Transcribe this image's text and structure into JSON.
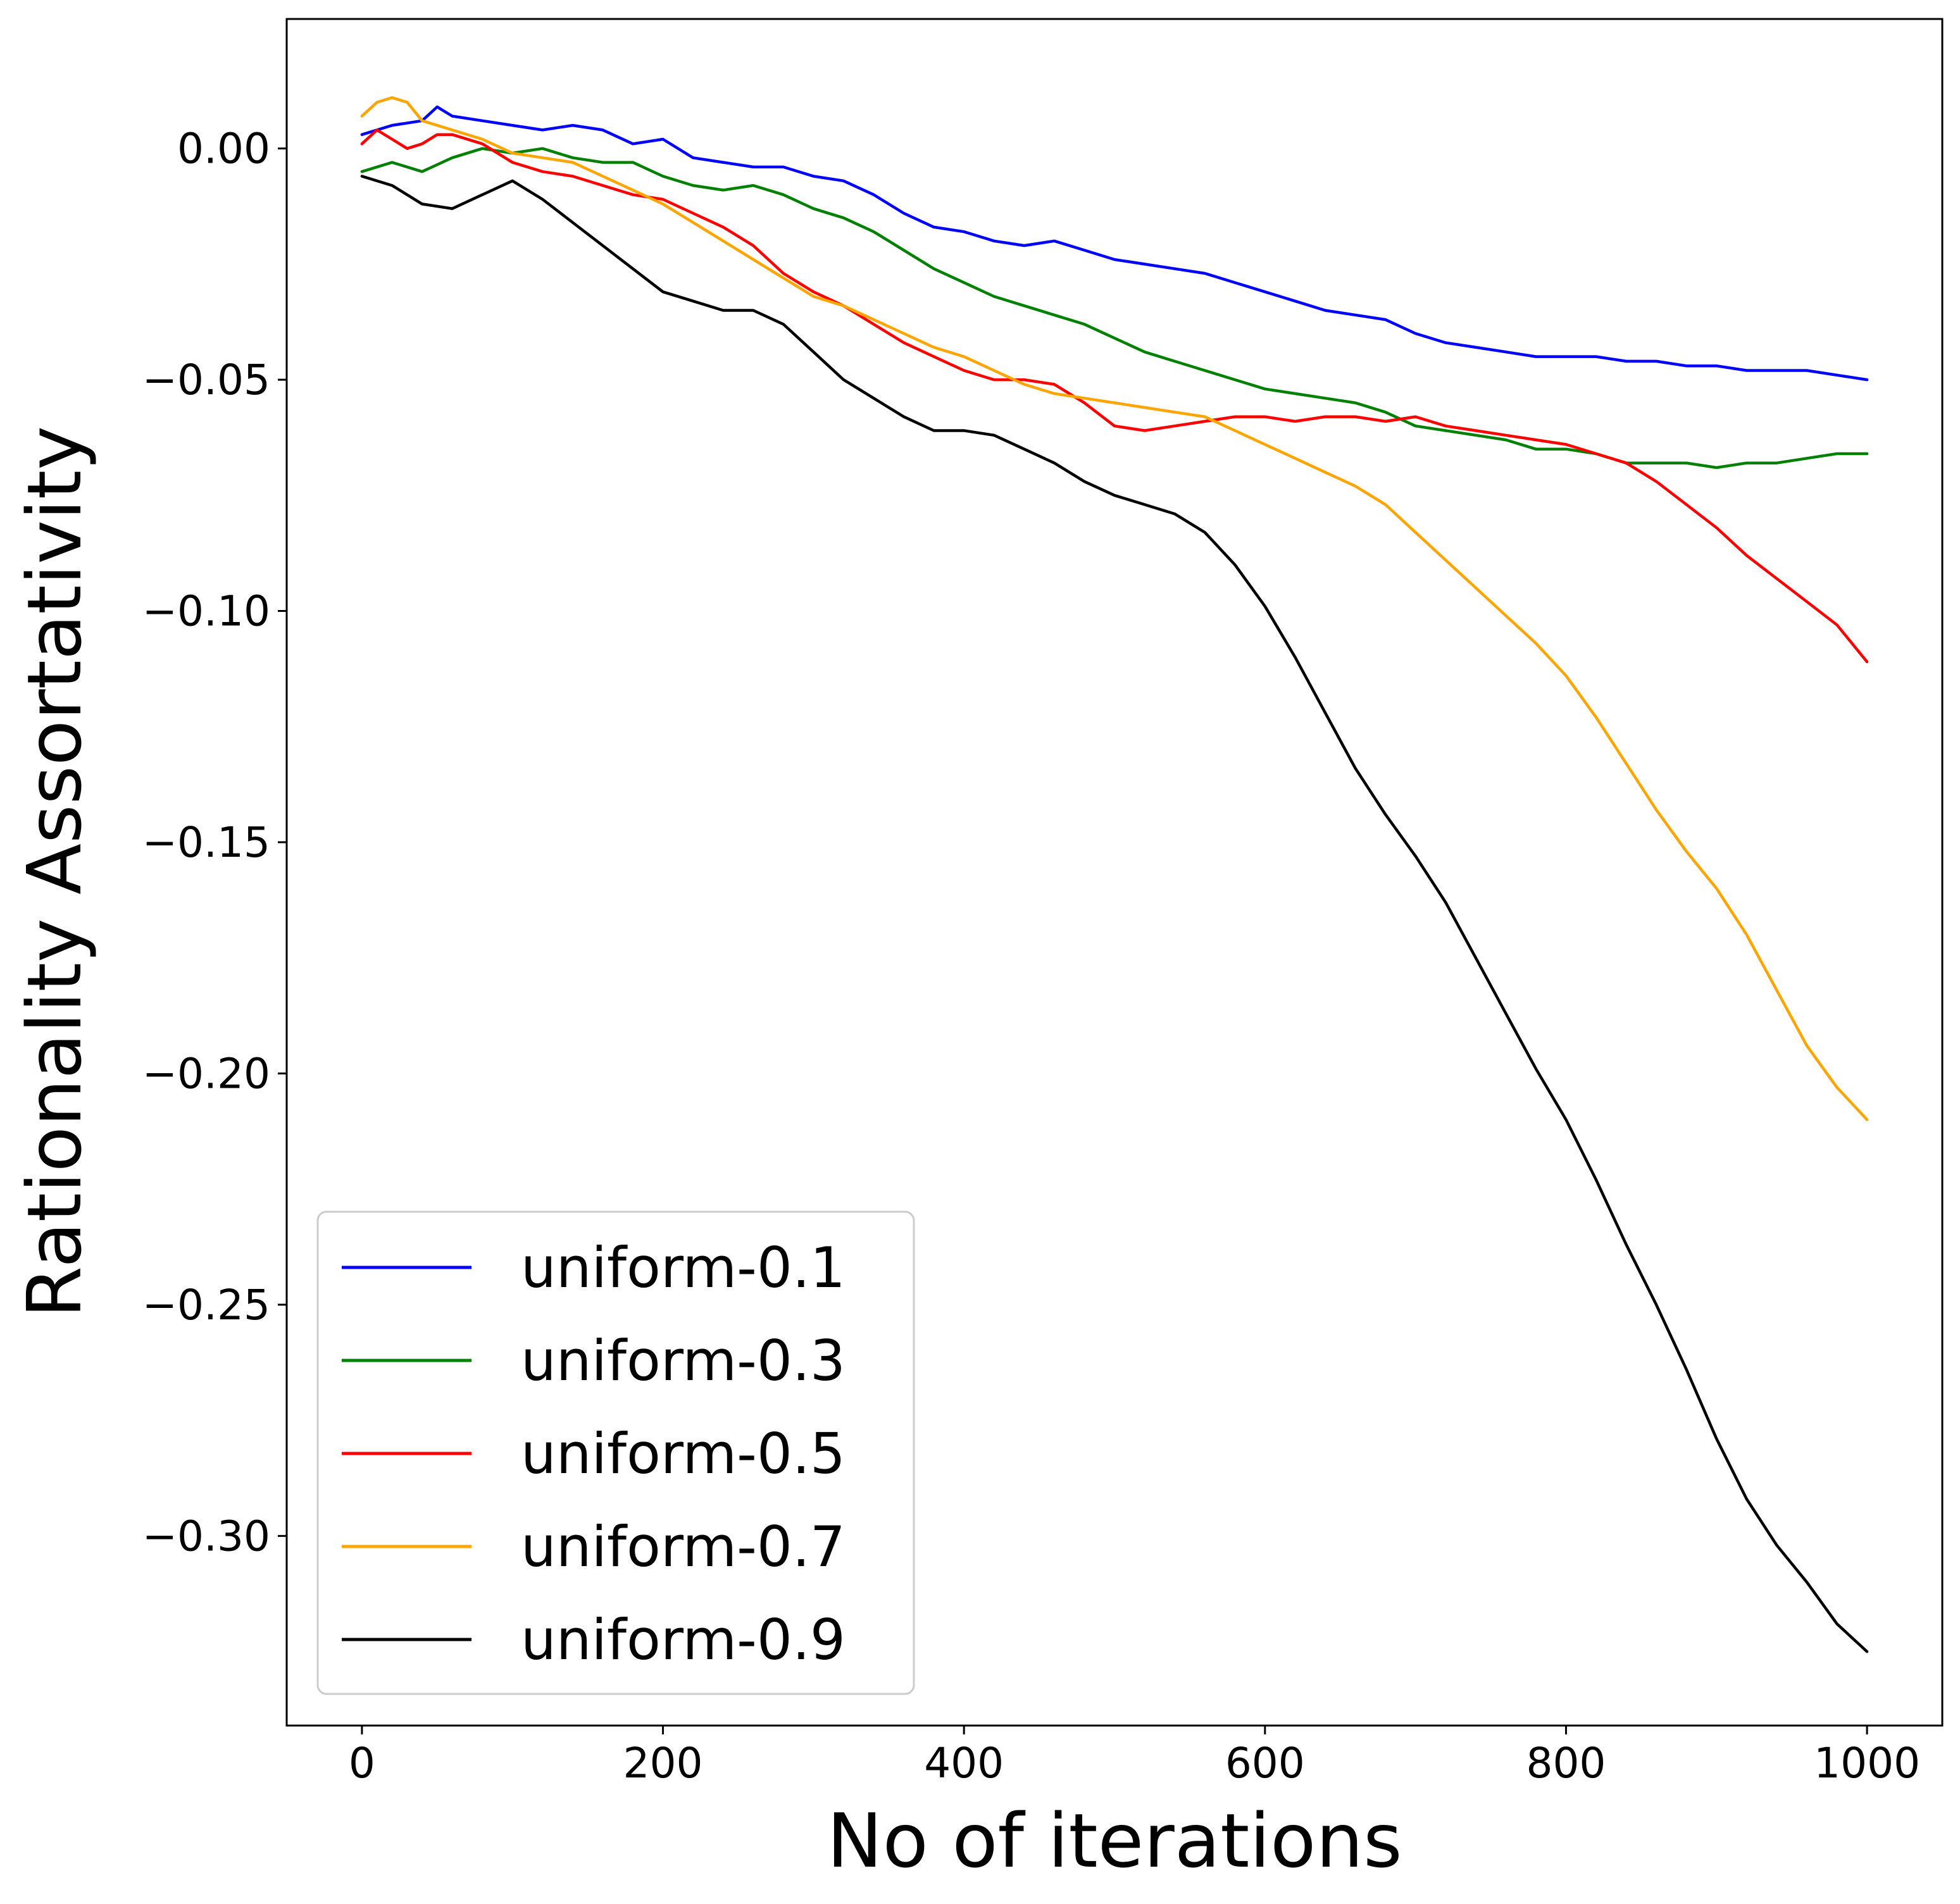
{
  "chart_data": {
    "type": "line",
    "title": "",
    "xlabel": "No of iterations",
    "ylabel": "Rationality Assortativity",
    "xlim": [
      -50,
      1050
    ],
    "ylim": [
      -0.341,
      0.028
    ],
    "x_ticks": [
      0,
      200,
      400,
      600,
      800,
      1000
    ],
    "x_tick_labels": [
      "0",
      "200",
      "400",
      "600",
      "800",
      "1000"
    ],
    "y_ticks": [
      0.0,
      -0.05,
      -0.1,
      -0.15,
      -0.2,
      -0.25,
      -0.3
    ],
    "y_tick_labels": [
      "0.00",
      "−0.05",
      "−0.10",
      "−0.15",
      "−0.20",
      "−0.25",
      "−0.30"
    ],
    "grid": false,
    "legend_position": "lower-left",
    "series": [
      {
        "name": "uniform-0.1",
        "color": "#0000ff",
        "points": [
          [
            0,
            0.003
          ],
          [
            20,
            0.005
          ],
          [
            40,
            0.006
          ],
          [
            50,
            0.009
          ],
          [
            60,
            0.007
          ],
          [
            80,
            0.006
          ],
          [
            100,
            0.005
          ],
          [
            120,
            0.004
          ],
          [
            140,
            0.005
          ],
          [
            160,
            0.004
          ],
          [
            180,
            0.001
          ],
          [
            200,
            0.002
          ],
          [
            220,
            -0.002
          ],
          [
            240,
            -0.003
          ],
          [
            260,
            -0.004
          ],
          [
            280,
            -0.004
          ],
          [
            300,
            -0.006
          ],
          [
            320,
            -0.007
          ],
          [
            340,
            -0.01
          ],
          [
            360,
            -0.014
          ],
          [
            380,
            -0.017
          ],
          [
            400,
            -0.018
          ],
          [
            420,
            -0.02
          ],
          [
            440,
            -0.021
          ],
          [
            460,
            -0.02
          ],
          [
            480,
            -0.022
          ],
          [
            500,
            -0.024
          ],
          [
            520,
            -0.025
          ],
          [
            540,
            -0.026
          ],
          [
            560,
            -0.027
          ],
          [
            580,
            -0.029
          ],
          [
            600,
            -0.031
          ],
          [
            620,
            -0.033
          ],
          [
            640,
            -0.035
          ],
          [
            660,
            -0.036
          ],
          [
            680,
            -0.037
          ],
          [
            700,
            -0.04
          ],
          [
            720,
            -0.042
          ],
          [
            740,
            -0.043
          ],
          [
            760,
            -0.044
          ],
          [
            780,
            -0.045
          ],
          [
            800,
            -0.045
          ],
          [
            820,
            -0.045
          ],
          [
            840,
            -0.046
          ],
          [
            860,
            -0.046
          ],
          [
            880,
            -0.047
          ],
          [
            900,
            -0.047
          ],
          [
            920,
            -0.048
          ],
          [
            940,
            -0.048
          ],
          [
            960,
            -0.048
          ],
          [
            980,
            -0.049
          ],
          [
            1000,
            -0.05
          ]
        ]
      },
      {
        "name": "uniform-0.3",
        "color": "#008000",
        "points": [
          [
            0,
            -0.005
          ],
          [
            20,
            -0.003
          ],
          [
            40,
            -0.005
          ],
          [
            60,
            -0.002
          ],
          [
            80,
            0.0
          ],
          [
            100,
            -0.001
          ],
          [
            120,
            0.0
          ],
          [
            140,
            -0.002
          ],
          [
            160,
            -0.003
          ],
          [
            180,
            -0.003
          ],
          [
            200,
            -0.006
          ],
          [
            220,
            -0.008
          ],
          [
            240,
            -0.009
          ],
          [
            260,
            -0.008
          ],
          [
            280,
            -0.01
          ],
          [
            300,
            -0.013
          ],
          [
            320,
            -0.015
          ],
          [
            340,
            -0.018
          ],
          [
            360,
            -0.022
          ],
          [
            380,
            -0.026
          ],
          [
            400,
            -0.029
          ],
          [
            420,
            -0.032
          ],
          [
            440,
            -0.034
          ],
          [
            460,
            -0.036
          ],
          [
            480,
            -0.038
          ],
          [
            500,
            -0.041
          ],
          [
            520,
            -0.044
          ],
          [
            540,
            -0.046
          ],
          [
            560,
            -0.048
          ],
          [
            580,
            -0.05
          ],
          [
            600,
            -0.052
          ],
          [
            620,
            -0.053
          ],
          [
            640,
            -0.054
          ],
          [
            660,
            -0.055
          ],
          [
            680,
            -0.057
          ],
          [
            700,
            -0.06
          ],
          [
            720,
            -0.061
          ],
          [
            740,
            -0.062
          ],
          [
            760,
            -0.063
          ],
          [
            780,
            -0.065
          ],
          [
            800,
            -0.065
          ],
          [
            820,
            -0.066
          ],
          [
            840,
            -0.068
          ],
          [
            860,
            -0.068
          ],
          [
            880,
            -0.068
          ],
          [
            900,
            -0.069
          ],
          [
            920,
            -0.068
          ],
          [
            940,
            -0.068
          ],
          [
            960,
            -0.067
          ],
          [
            980,
            -0.066
          ],
          [
            1000,
            -0.066
          ]
        ]
      },
      {
        "name": "uniform-0.5",
        "color": "#ff0000",
        "points": [
          [
            0,
            0.001
          ],
          [
            10,
            0.004
          ],
          [
            20,
            0.002
          ],
          [
            30,
            0.0
          ],
          [
            40,
            0.001
          ],
          [
            50,
            0.003
          ],
          [
            60,
            0.003
          ],
          [
            80,
            0.001
          ],
          [
            100,
            -0.003
          ],
          [
            120,
            -0.005
          ],
          [
            140,
            -0.006
          ],
          [
            160,
            -0.008
          ],
          [
            180,
            -0.01
          ],
          [
            200,
            -0.011
          ],
          [
            220,
            -0.014
          ],
          [
            240,
            -0.017
          ],
          [
            260,
            -0.021
          ],
          [
            280,
            -0.027
          ],
          [
            300,
            -0.031
          ],
          [
            320,
            -0.034
          ],
          [
            340,
            -0.038
          ],
          [
            360,
            -0.042
          ],
          [
            380,
            -0.045
          ],
          [
            400,
            -0.048
          ],
          [
            420,
            -0.05
          ],
          [
            440,
            -0.05
          ],
          [
            460,
            -0.051
          ],
          [
            480,
            -0.055
          ],
          [
            500,
            -0.06
          ],
          [
            520,
            -0.061
          ],
          [
            540,
            -0.06
          ],
          [
            560,
            -0.059
          ],
          [
            580,
            -0.058
          ],
          [
            600,
            -0.058
          ],
          [
            620,
            -0.059
          ],
          [
            640,
            -0.058
          ],
          [
            660,
            -0.058
          ],
          [
            680,
            -0.059
          ],
          [
            700,
            -0.058
          ],
          [
            720,
            -0.06
          ],
          [
            740,
            -0.061
          ],
          [
            760,
            -0.062
          ],
          [
            780,
            -0.063
          ],
          [
            800,
            -0.064
          ],
          [
            820,
            -0.066
          ],
          [
            840,
            -0.068
          ],
          [
            860,
            -0.072
          ],
          [
            880,
            -0.077
          ],
          [
            900,
            -0.082
          ],
          [
            920,
            -0.088
          ],
          [
            940,
            -0.093
          ],
          [
            960,
            -0.098
          ],
          [
            980,
            -0.103
          ],
          [
            1000,
            -0.111
          ]
        ]
      },
      {
        "name": "uniform-0.7",
        "color": "#ffa500",
        "points": [
          [
            0,
            0.007
          ],
          [
            10,
            0.01
          ],
          [
            20,
            0.011
          ],
          [
            30,
            0.01
          ],
          [
            40,
            0.006
          ],
          [
            60,
            0.004
          ],
          [
            80,
            0.002
          ],
          [
            100,
            -0.001
          ],
          [
            120,
            -0.002
          ],
          [
            140,
            -0.003
          ],
          [
            160,
            -0.006
          ],
          [
            180,
            -0.009
          ],
          [
            200,
            -0.012
          ],
          [
            220,
            -0.016
          ],
          [
            240,
            -0.02
          ],
          [
            260,
            -0.024
          ],
          [
            280,
            -0.028
          ],
          [
            300,
            -0.032
          ],
          [
            320,
            -0.034
          ],
          [
            340,
            -0.037
          ],
          [
            360,
            -0.04
          ],
          [
            380,
            -0.043
          ],
          [
            400,
            -0.045
          ],
          [
            420,
            -0.048
          ],
          [
            440,
            -0.051
          ],
          [
            460,
            -0.053
          ],
          [
            480,
            -0.054
          ],
          [
            500,
            -0.055
          ],
          [
            520,
            -0.056
          ],
          [
            540,
            -0.057
          ],
          [
            560,
            -0.058
          ],
          [
            580,
            -0.061
          ],
          [
            600,
            -0.064
          ],
          [
            620,
            -0.067
          ],
          [
            640,
            -0.07
          ],
          [
            660,
            -0.073
          ],
          [
            680,
            -0.077
          ],
          [
            700,
            -0.083
          ],
          [
            720,
            -0.089
          ],
          [
            740,
            -0.095
          ],
          [
            760,
            -0.101
          ],
          [
            780,
            -0.107
          ],
          [
            800,
            -0.114
          ],
          [
            820,
            -0.123
          ],
          [
            840,
            -0.133
          ],
          [
            860,
            -0.143
          ],
          [
            880,
            -0.152
          ],
          [
            900,
            -0.16
          ],
          [
            920,
            -0.17
          ],
          [
            940,
            -0.182
          ],
          [
            960,
            -0.194
          ],
          [
            980,
            -0.203
          ],
          [
            1000,
            -0.21
          ]
        ]
      },
      {
        "name": "uniform-0.9",
        "color": "#000000",
        "points": [
          [
            0,
            -0.006
          ],
          [
            20,
            -0.008
          ],
          [
            40,
            -0.012
          ],
          [
            60,
            -0.013
          ],
          [
            80,
            -0.01
          ],
          [
            100,
            -0.007
          ],
          [
            120,
            -0.011
          ],
          [
            140,
            -0.016
          ],
          [
            160,
            -0.021
          ],
          [
            180,
            -0.026
          ],
          [
            200,
            -0.031
          ],
          [
            220,
            -0.033
          ],
          [
            240,
            -0.035
          ],
          [
            260,
            -0.035
          ],
          [
            280,
            -0.038
          ],
          [
            300,
            -0.044
          ],
          [
            320,
            -0.05
          ],
          [
            340,
            -0.054
          ],
          [
            360,
            -0.058
          ],
          [
            380,
            -0.061
          ],
          [
            400,
            -0.061
          ],
          [
            420,
            -0.062
          ],
          [
            440,
            -0.065
          ],
          [
            460,
            -0.068
          ],
          [
            480,
            -0.072
          ],
          [
            500,
            -0.075
          ],
          [
            520,
            -0.077
          ],
          [
            540,
            -0.079
          ],
          [
            560,
            -0.083
          ],
          [
            580,
            -0.09
          ],
          [
            600,
            -0.099
          ],
          [
            620,
            -0.11
          ],
          [
            640,
            -0.122
          ],
          [
            660,
            -0.134
          ],
          [
            680,
            -0.144
          ],
          [
            700,
            -0.153
          ],
          [
            720,
            -0.163
          ],
          [
            740,
            -0.175
          ],
          [
            760,
            -0.187
          ],
          [
            780,
            -0.199
          ],
          [
            800,
            -0.21
          ],
          [
            820,
            -0.223
          ],
          [
            840,
            -0.237
          ],
          [
            860,
            -0.25
          ],
          [
            880,
            -0.264
          ],
          [
            900,
            -0.279
          ],
          [
            920,
            -0.292
          ],
          [
            940,
            -0.302
          ],
          [
            960,
            -0.31
          ],
          [
            980,
            -0.319
          ],
          [
            1000,
            -0.325
          ]
        ]
      }
    ]
  }
}
